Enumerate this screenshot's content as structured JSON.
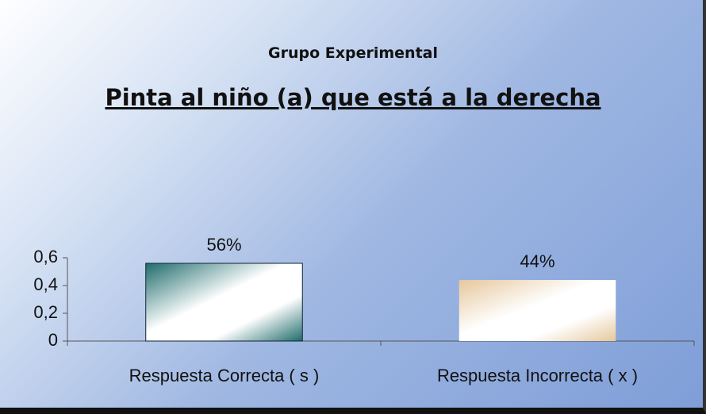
{
  "chart_data": {
    "type": "bar",
    "subtitle": "Grupo Experimental",
    "title": "Pinta al niño (a) que está a la derecha",
    "categories": [
      "Respuesta Correcta ( s )",
      "Respuesta Incorrecta ( x )"
    ],
    "values": [
      0.56,
      0.44
    ],
    "value_labels": [
      "56%",
      "44%"
    ],
    "colors": [
      "#1f6b6b",
      "#e6c79c"
    ],
    "ylim": [
      0,
      0.6
    ],
    "yticks": [
      0,
      {
        "value": 0.2,
        "label": "0,2"
      },
      {
        "value": 0.4,
        "label": "0,4"
      },
      {
        "value": 0.6,
        "label": "0,6"
      }
    ]
  }
}
